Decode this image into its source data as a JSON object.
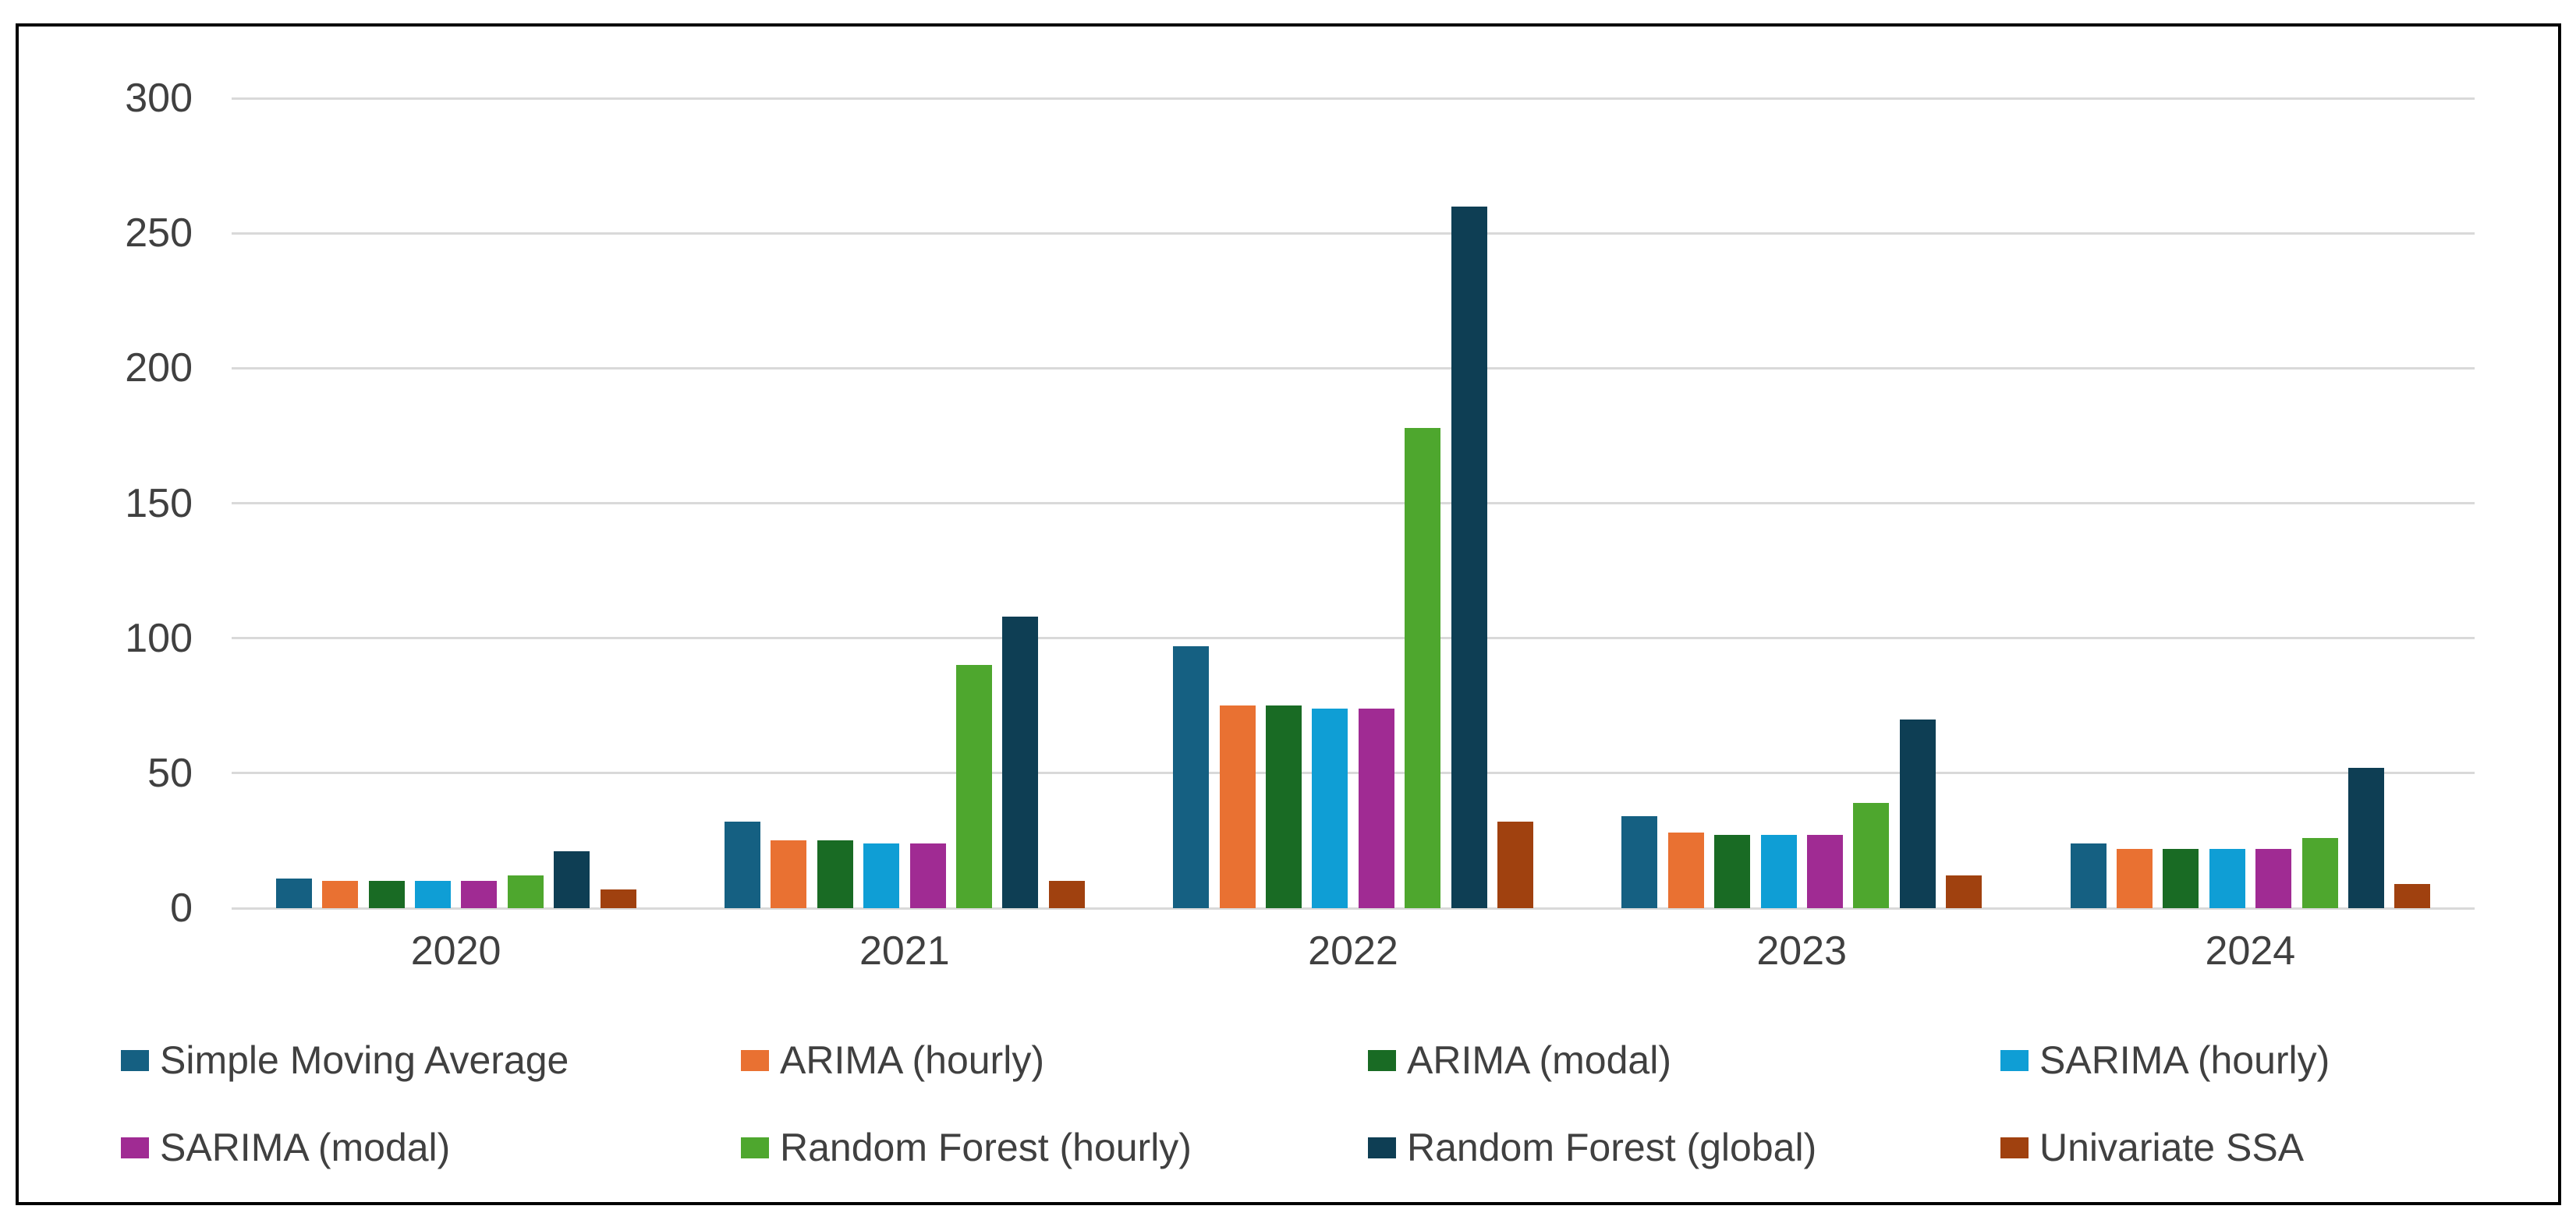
{
  "chart_data": {
    "type": "bar",
    "title": "",
    "xlabel": "",
    "ylabel": "",
    "categories": [
      "2020",
      "2021",
      "2022",
      "2023",
      "2024"
    ],
    "series": [
      {
        "name": "Simple Moving Average",
        "color": "#156082",
        "values": [
          11,
          32,
          97,
          34,
          24
        ]
      },
      {
        "name": "ARIMA (hourly)",
        "color": "#E97132",
        "values": [
          10,
          25,
          75,
          28,
          22
        ]
      },
      {
        "name": "ARIMA (modal)",
        "color": "#196B24",
        "values": [
          10,
          25,
          75,
          27,
          22
        ]
      },
      {
        "name": "SARIMA (hourly)",
        "color": "#0F9ED5",
        "values": [
          10,
          24,
          74,
          27,
          22
        ]
      },
      {
        "name": "SARIMA (modal)",
        "color": "#A02B93",
        "values": [
          10,
          24,
          74,
          27,
          22
        ]
      },
      {
        "name": "Random Forest (hourly)",
        "color": "#4EA72E",
        "values": [
          12,
          90,
          178,
          39,
          26
        ]
      },
      {
        "name": "Random Forest (global)",
        "color": "#0E3E54",
        "values": [
          21,
          108,
          260,
          70,
          52
        ]
      },
      {
        "name": "Univariate SSA",
        "color": "#A0410F",
        "values": [
          7,
          10,
          32,
          12,
          9
        ]
      }
    ],
    "ylim": [
      0,
      300
    ],
    "yticks": [
      0,
      50,
      100,
      150,
      200,
      250,
      300
    ],
    "gridlines": "horizontal",
    "legend_position": "bottom",
    "legend_columns": 4
  },
  "colors": {
    "gridline": "#D9D9D9",
    "axis_text": "#404040",
    "frame_border": "#000000",
    "background": "#FFFFFF"
  }
}
